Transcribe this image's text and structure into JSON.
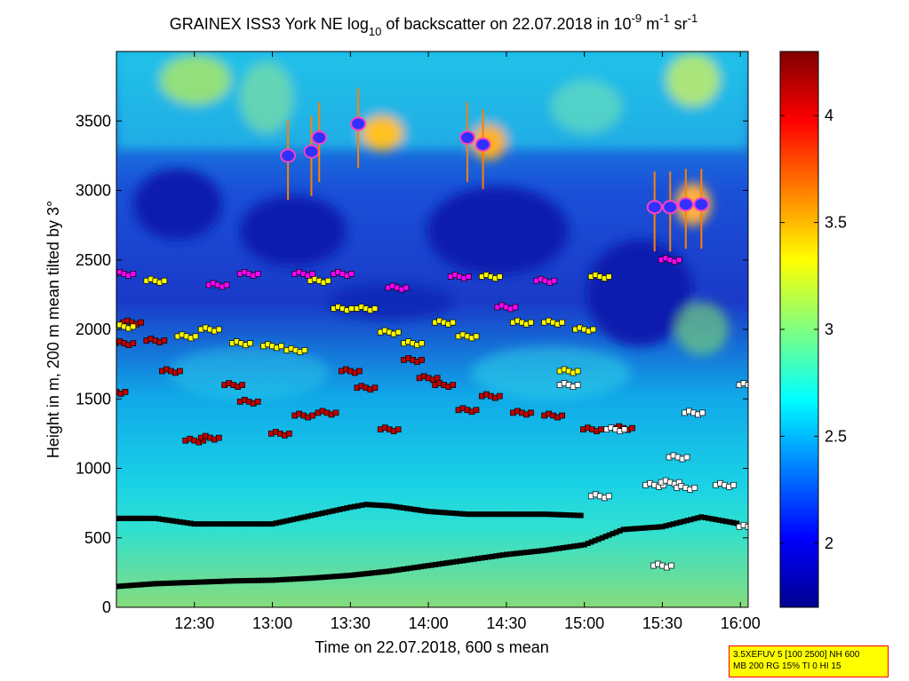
{
  "chart_data": {
    "type": "heatmap",
    "title": {
      "main": "GRAINEX ISS3 York NE log",
      "main_sub": "10",
      "mid": " of backscatter on 22.07.2018 in 10",
      "exp1": "-9",
      "unit1": " m",
      "exp2": "-1",
      "unit2": " sr",
      "exp3": "-1"
    },
    "xlabel": "Time on 22.07.2018, 600 s mean",
    "ylabel": "Height in m, 200 m mean tilted by 3°",
    "x_range_hours": [
      12.0,
      16.05
    ],
    "x_ticks": [
      {
        "label": "12:30",
        "hour": 12.5
      },
      {
        "label": "13:00",
        "hour": 13.0
      },
      {
        "label": "13:30",
        "hour": 13.5
      },
      {
        "label": "14:00",
        "hour": 14.0
      },
      {
        "label": "14:30",
        "hour": 14.5
      },
      {
        "label": "15:00",
        "hour": 15.0
      },
      {
        "label": "15:30",
        "hour": 15.5
      },
      {
        "label": "16:00",
        "hour": 16.0
      }
    ],
    "ylim": [
      0,
      4000
    ],
    "y_ticks": [
      0,
      500,
      1000,
      1500,
      2000,
      2500,
      3000,
      3500
    ],
    "colorbar": {
      "range": [
        1.7,
        4.3
      ],
      "ticks": [
        {
          "label": "2",
          "value": 2.0
        },
        {
          "label": "2.5",
          "value": 2.5
        },
        {
          "label": "3",
          "value": 3.0
        },
        {
          "label": "3.5",
          "value": 3.5
        },
        {
          "label": "4",
          "value": 4.0
        }
      ],
      "colormap": "jet"
    },
    "series": [
      {
        "marker": "black-square",
        "points": [
          [
            12.0,
            640
          ],
          [
            12.25,
            640
          ],
          [
            12.5,
            600
          ],
          [
            12.75,
            600
          ],
          [
            13.0,
            600
          ],
          [
            13.25,
            660
          ],
          [
            13.5,
            720
          ],
          [
            13.6,
            740
          ],
          [
            13.75,
            730
          ],
          [
            14.0,
            690
          ],
          [
            14.25,
            670
          ],
          [
            14.5,
            670
          ],
          [
            14.75,
            670
          ],
          [
            15.0,
            660
          ]
        ]
      },
      {
        "marker": "black-square",
        "points": [
          [
            12.0,
            150
          ],
          [
            12.25,
            170
          ],
          [
            12.5,
            180
          ],
          [
            12.75,
            190
          ],
          [
            13.0,
            195
          ],
          [
            13.25,
            210
          ],
          [
            13.5,
            230
          ],
          [
            13.75,
            260
          ],
          [
            14.0,
            300
          ],
          [
            14.25,
            340
          ],
          [
            14.5,
            380
          ],
          [
            14.75,
            410
          ],
          [
            15.0,
            450
          ],
          [
            15.25,
            560
          ],
          [
            15.5,
            580
          ],
          [
            15.75,
            650
          ],
          [
            16.0,
            600
          ]
        ]
      },
      {
        "marker": "red-square",
        "points": [
          [
            12.0,
            1550
          ],
          [
            12.05,
            1900
          ],
          [
            12.1,
            2050
          ],
          [
            12.25,
            1920
          ],
          [
            12.35,
            1700
          ],
          [
            12.5,
            1200
          ],
          [
            12.6,
            1220
          ],
          [
            12.75,
            1600
          ],
          [
            12.85,
            1480
          ],
          [
            13.05,
            1250
          ],
          [
            13.2,
            1380
          ],
          [
            13.35,
            1400
          ],
          [
            13.5,
            1700
          ],
          [
            13.6,
            1580
          ],
          [
            13.75,
            1280
          ],
          [
            13.9,
            1780
          ],
          [
            14.0,
            1650
          ],
          [
            14.1,
            1600
          ],
          [
            14.25,
            1420
          ],
          [
            14.4,
            1520
          ],
          [
            14.6,
            1400
          ],
          [
            14.8,
            1380
          ],
          [
            15.05,
            1280
          ],
          [
            15.25,
            1290
          ]
        ]
      },
      {
        "marker": "yellow-square",
        "points": [
          [
            12.05,
            2020
          ],
          [
            12.25,
            2350
          ],
          [
            12.45,
            1950
          ],
          [
            12.6,
            2000
          ],
          [
            12.8,
            1900
          ],
          [
            13.0,
            1880
          ],
          [
            13.15,
            1850
          ],
          [
            13.3,
            2350
          ],
          [
            13.45,
            2150
          ],
          [
            13.6,
            2150
          ],
          [
            13.75,
            1980
          ],
          [
            13.9,
            1900
          ],
          [
            14.1,
            2050
          ],
          [
            14.25,
            1950
          ],
          [
            14.4,
            2380
          ],
          [
            14.6,
            2050
          ],
          [
            14.8,
            2050
          ],
          [
            15.0,
            2000
          ],
          [
            15.1,
            2380
          ],
          [
            14.9,
            1700
          ]
        ]
      },
      {
        "marker": "magenta-square",
        "points": [
          [
            12.05,
            2400
          ],
          [
            12.65,
            2320
          ],
          [
            12.85,
            2400
          ],
          [
            13.2,
            2400
          ],
          [
            13.45,
            2400
          ],
          [
            13.8,
            2300
          ],
          [
            14.2,
            2380
          ],
          [
            14.5,
            2160
          ],
          [
            14.75,
            2350
          ],
          [
            15.55,
            2500
          ]
        ]
      },
      {
        "marker": "white-square",
        "points": [
          [
            14.9,
            1600
          ],
          [
            15.2,
            1280
          ],
          [
            15.1,
            800
          ],
          [
            15.45,
            880
          ],
          [
            15.55,
            900
          ],
          [
            15.65,
            860
          ],
          [
            15.9,
            880
          ],
          [
            16.05,
            1600
          ],
          [
            15.7,
            1400
          ],
          [
            15.6,
            1080
          ],
          [
            15.5,
            300
          ],
          [
            16.05,
            580
          ]
        ]
      },
      {
        "marker": "cloud-top",
        "points": [
          [
            13.1,
            3250
          ],
          [
            13.25,
            3280
          ],
          [
            13.3,
            3380
          ],
          [
            13.55,
            3480
          ],
          [
            14.25,
            3380
          ],
          [
            14.35,
            3330
          ],
          [
            15.45,
            2880
          ],
          [
            15.55,
            2880
          ],
          [
            15.65,
            2900
          ],
          [
            15.75,
            2900
          ]
        ]
      }
    ]
  },
  "note": {
    "line1": "3.5XEFUV 5 [100 2500] NH 600",
    "line2": "MB 200 RG 15% TI 0 HI 15"
  }
}
